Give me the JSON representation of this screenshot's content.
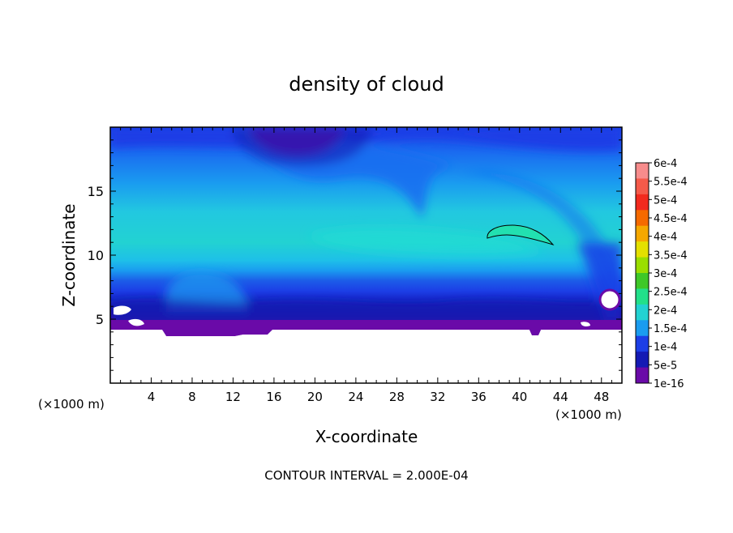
{
  "chart_data": {
    "type": "heatmap",
    "title": "density of cloud",
    "xlabel": "X-coordinate",
    "ylabel": "Z-coordinate",
    "x_unit_label_left": "(×1000 m)",
    "x_unit_label_right": "(×1000 m)",
    "footer": "CONTOUR INTERVAL = 2.000E-04",
    "xlim": [
      0,
      50
    ],
    "ylim": [
      0,
      20
    ],
    "x_ticks": [
      4,
      8,
      12,
      16,
      20,
      24,
      28,
      32,
      36,
      40,
      44,
      48
    ],
    "y_ticks": [
      5,
      10,
      15
    ],
    "grid": false,
    "legend_position": "right",
    "colorbar": {
      "labels": [
        "6e-4",
        "5.5e-4",
        "5e-4",
        "4.5e-4",
        "4e-4",
        "3.5e-4",
        "3e-4",
        "2.5e-4",
        "2e-4",
        "1.5e-4",
        "1e-4",
        "5e-5",
        "1e-16"
      ],
      "colors": [
        "#f78c8c",
        "#f55a4a",
        "#f22a1e",
        "#f56a00",
        "#f5a800",
        "#e4e000",
        "#9ade00",
        "#3ec828",
        "#22e08a",
        "#22d2d2",
        "#1a9cf0",
        "#1c3ee6",
        "#141ab4",
        "#6a0aa8"
      ]
    },
    "regions": [
      {
        "name": "upper-cyan-band",
        "z_range": [
          10,
          16
        ],
        "value_range": [
          "1.5e-4",
          "2e-4"
        ]
      },
      {
        "name": "upper-blue-layer",
        "z_range": [
          16,
          20
        ],
        "value_range": [
          "5e-5",
          "1e-4"
        ]
      },
      {
        "name": "purple-patch-top",
        "x_range": [
          14,
          22
        ],
        "z_range": [
          17.5,
          20
        ],
        "value": "1e-16"
      },
      {
        "name": "closed-contour",
        "x_range": [
          36.8,
          43.2
        ],
        "z_range": [
          10.8,
          12.3
        ],
        "value": "2e-4"
      },
      {
        "name": "lower-dark-band",
        "z_range": [
          4,
          7
        ],
        "value_range": [
          "1e-16",
          "5e-5"
        ]
      },
      {
        "name": "no-cloud-region",
        "z_range": [
          0,
          4
        ],
        "value": "none"
      }
    ]
  }
}
